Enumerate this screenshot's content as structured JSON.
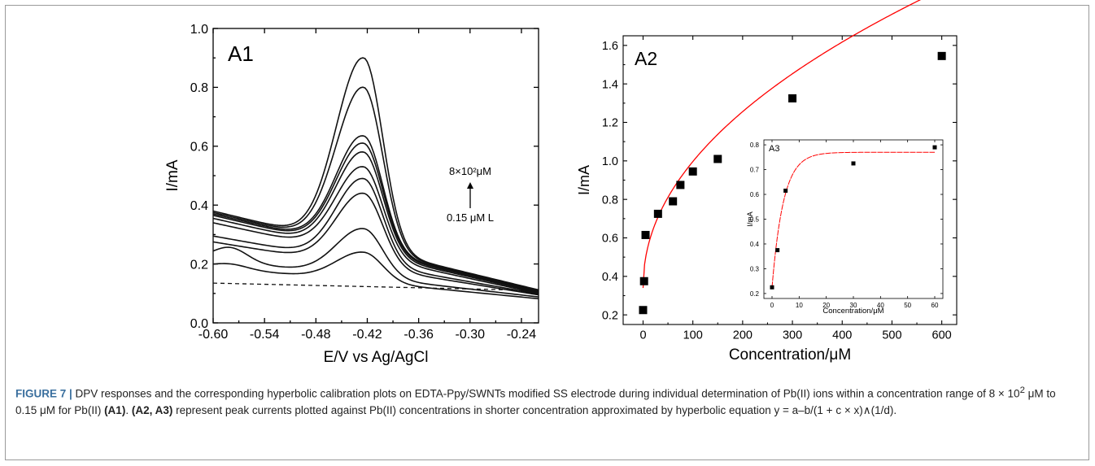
{
  "chart_data": [
    {
      "id": "A1",
      "type": "line",
      "panel_label": "A1",
      "xlabel": "E/V vs Ag/AgCl",
      "ylabel": "I/mA",
      "xlim": [
        -0.6,
        -0.22
      ],
      "ylim": [
        0.0,
        1.0
      ],
      "xticks": [
        -0.6,
        -0.54,
        -0.48,
        -0.42,
        -0.36,
        -0.3,
        -0.24
      ],
      "xtick_labels": [
        "-0.60",
        "-0.54",
        "-0.48",
        "-0.42",
        "-0.36",
        "-0.30",
        "-0.24"
      ],
      "yticks": [
        0.0,
        0.2,
        0.4,
        0.6,
        0.8,
        1.0
      ],
      "ytick_labels": [
        "0.0",
        "0.2",
        "0.4",
        "0.6",
        "0.8",
        "1.0"
      ],
      "annotation": {
        "top": "8×10²μM",
        "bottom": "0.15 μM L"
      },
      "peak_E": -0.424,
      "series": [
        {
          "start": 0.19,
          "peak": 0.24,
          "end": 0.082
        },
        {
          "start": 0.215,
          "peak": 0.32,
          "end": 0.088
        },
        {
          "start": 0.275,
          "peak": 0.44,
          "end": 0.095
        },
        {
          "start": 0.295,
          "peak": 0.49,
          "end": 0.098
        },
        {
          "start": 0.34,
          "peak": 0.53,
          "end": 0.1
        },
        {
          "start": 0.355,
          "peak": 0.58,
          "end": 0.103
        },
        {
          "start": 0.365,
          "peak": 0.61,
          "end": 0.105
        },
        {
          "start": 0.37,
          "peak": 0.635,
          "end": 0.108
        },
        {
          "start": 0.375,
          "peak": 0.8,
          "end": 0.11
        },
        {
          "start": 0.38,
          "peak": 0.9,
          "end": 0.112
        }
      ],
      "baseline": {
        "start": 0.135,
        "end": 0.11
      }
    },
    {
      "id": "A2",
      "type": "scatter",
      "panel_label": "A2",
      "xlabel": "Concentration/μM",
      "ylabel": "I/mA",
      "xlim": [
        -40,
        630
      ],
      "ylim": [
        0.15,
        1.65
      ],
      "xticks": [
        0,
        100,
        200,
        300,
        400,
        500,
        600
      ],
      "xtick_labels": [
        "0",
        "100",
        "200",
        "300",
        "400",
        "500",
        "600"
      ],
      "yticks": [
        0.2,
        0.4,
        0.6,
        0.8,
        1.0,
        1.2,
        1.4,
        1.6
      ],
      "ytick_labels": [
        "0.2",
        "0.4",
        "0.6",
        "0.8",
        "1.0",
        "1.2",
        "1.4",
        "1.6"
      ],
      "points": [
        {
          "x": 0,
          "y": 0.225
        },
        {
          "x": 2,
          "y": 0.375
        },
        {
          "x": 5,
          "y": 0.615
        },
        {
          "x": 30,
          "y": 0.725
        },
        {
          "x": 60,
          "y": 0.79
        },
        {
          "x": 75,
          "y": 0.875
        },
        {
          "x": 100,
          "y": 0.945
        },
        {
          "x": 150,
          "y": 1.01
        },
        {
          "x": 300,
          "y": 1.325
        },
        {
          "x": 600,
          "y": 1.545
        }
      ],
      "fit": {
        "color": "#ff0000"
      }
    },
    {
      "id": "A3",
      "type": "scatter",
      "panel_label": "A3",
      "xlabel": "Concentration/μM",
      "ylabel": "I/mA",
      "xlim": [
        -3,
        63
      ],
      "ylim": [
        0.18,
        0.82
      ],
      "xticks": [
        0,
        10,
        20,
        30,
        40,
        50,
        60
      ],
      "xtick_labels": [
        "0",
        "10",
        "20",
        "30",
        "40",
        "50",
        "60"
      ],
      "yticks": [
        0.2,
        0.3,
        0.4,
        0.5,
        0.6,
        0.7,
        0.8
      ],
      "ytick_labels": [
        "0.2",
        "0.3",
        "0.4",
        "0.5",
        "0.6",
        "0.7",
        "0.8"
      ],
      "points": [
        {
          "x": 0,
          "y": 0.225
        },
        {
          "x": 2,
          "y": 0.375
        },
        {
          "x": 5,
          "y": 0.615
        },
        {
          "x": 30,
          "y": 0.725
        },
        {
          "x": 60,
          "y": 0.79
        }
      ],
      "fit": {
        "color": "#ff0000"
      }
    }
  ],
  "caption": {
    "figure_label": "FIGURE 7 |",
    "text_1": " DPV responses and the corresponding hyperbolic calibration plots on EDTA-Ppy/SWNTs modified SS electrode during individual determination of Pb(II) ions within a concentration range of 8 × 10",
    "sup": "2",
    "text_2": " μM to 0.15 μM for Pb(II) ",
    "ref_1": "(A1)",
    "text_3": ". ",
    "ref_2": "(A2, A3)",
    "text_4": " represent peak currents plotted against Pb(II) concentrations in shorter concentration approximated by hyperbolic equation y = a–b/(1 + c × x)∧(1/d)."
  }
}
